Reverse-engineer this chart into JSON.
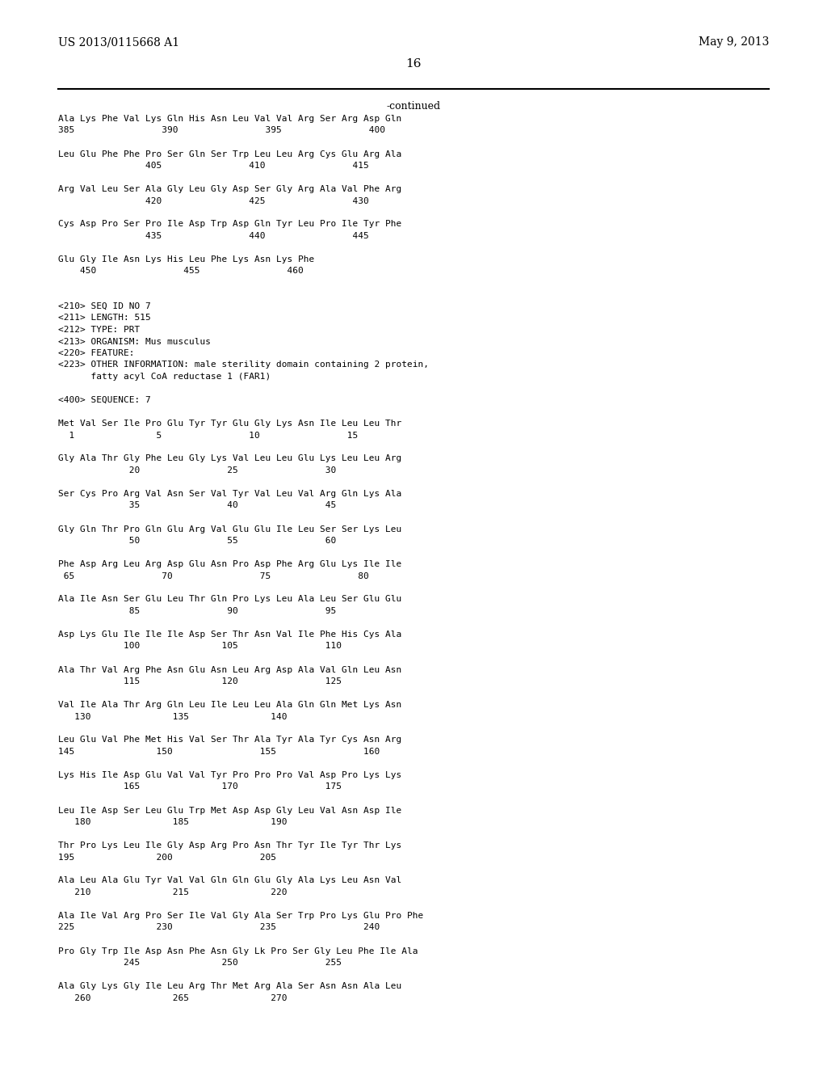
{
  "header_left": "US 2013/0115668 A1",
  "header_right": "May 9, 2013",
  "page_number": "16",
  "continued_label": "-continued",
  "background_color": "#ffffff",
  "text_color": "#000000",
  "font_family": "monospace",
  "content": [
    "Ala Lys Phe Val Lys Gln His Asn Leu Val Val Arg Ser Arg Asp Gln",
    "385                390                395                400",
    "",
    "Leu Glu Phe Phe Pro Ser Gln Ser Trp Leu Leu Arg Cys Glu Arg Ala",
    "                405                410                415",
    "",
    "Arg Val Leu Ser Ala Gly Leu Gly Asp Ser Gly Arg Ala Val Phe Arg",
    "                420                425                430",
    "",
    "Cys Asp Pro Ser Pro Ile Asp Trp Asp Gln Tyr Leu Pro Ile Tyr Phe",
    "                435                440                445",
    "",
    "Glu Gly Ile Asn Lys His Leu Phe Lys Asn Lys Phe",
    "    450                455                460",
    "",
    "",
    "<210> SEQ ID NO 7",
    "<211> LENGTH: 515",
    "<212> TYPE: PRT",
    "<213> ORGANISM: Mus musculus",
    "<220> FEATURE:",
    "<223> OTHER INFORMATION: male sterility domain containing 2 protein,",
    "      fatty acyl CoA reductase 1 (FAR1)",
    "",
    "<400> SEQUENCE: 7",
    "",
    "Met Val Ser Ile Pro Glu Tyr Tyr Glu Gly Lys Asn Ile Leu Leu Thr",
    "  1               5                10                15",
    "",
    "Gly Ala Thr Gly Phe Leu Gly Lys Val Leu Leu Glu Lys Leu Leu Arg",
    "             20                25                30",
    "",
    "Ser Cys Pro Arg Val Asn Ser Val Tyr Val Leu Val Arg Gln Lys Ala",
    "             35                40                45",
    "",
    "Gly Gln Thr Pro Gln Glu Arg Val Glu Glu Ile Leu Ser Ser Lys Leu",
    "             50                55                60",
    "",
    "Phe Asp Arg Leu Arg Asp Glu Asn Pro Asp Phe Arg Glu Lys Ile Ile",
    " 65                70                75                80",
    "",
    "Ala Ile Asn Ser Glu Leu Thr Gln Gln Pro Lys Leu Ala Leu Ser Glu Glu",
    "             85                90                95",
    "",
    "Asp Lys Glu Ile Ile Ile Asp Ser Thr Asn Val Ile Phe His Cys Ala",
    "            100               105                110",
    "",
    "Ala Thr Val Arg Phe Asn Glu Asn Leu Arg Asp Ala Val Gln Leu Asn",
    "            115               120                125",
    "",
    "Val Ile Ala Thr Arg Gln Leu Ile Leu Leu Ala Gln Gln Met Lys Asn",
    "   130               135               140",
    "",
    "Leu Glu Val Phe Met His Val Ser Thr Ala Tyr Ala Tyr Cys Asn Arg",
    "145               150                155                160",
    "",
    "Lys His Ile Asp Glu Val Val Tyr Pro Pro Pro Val Asp Pro Lys Lys",
    "            165               170                175",
    "",
    "Leu Ile Asp Ser Leu Glu Trp Met Asp Asp Gly Leu Val Asn Asp Ile",
    "   180               185               190",
    "",
    "Thr Pro Lys Leu Ile Gly Asp Arg Pro Asn Thr Tyr Ile Tyr Thr Lys",
    "195               200                205",
    "",
    "Ala Leu Ala Glu Tyr Val Val Gln Gln Glu Gly Ala Lk Leu Asn Val",
    "   210               215               220",
    "",
    "Ala Ile Val Arg Pro Ser Ile Gly Ala Ser Trp Pro Lk Glu Pro Phe",
    "225               230                235                240",
    "",
    "Pro Gly Trp Ile Asp Asn Phe Asn Gly Lk Pro Ser Gly Leu Phe Ile Ala",
    "            245               250                255",
    "",
    "Ala Gly Lk Gly Ile Leu Arg Thr Met Arg Ala Ser Asn Asn Ala Leu",
    "   260               265               270"
  ]
}
